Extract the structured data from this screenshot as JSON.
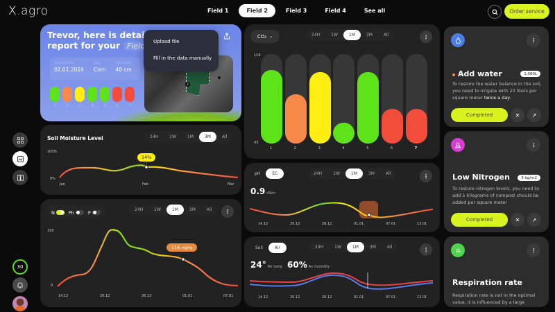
{
  "header": {
    "logo": "X.agro",
    "tabs": [
      {
        "label": "Field 1",
        "active": false
      },
      {
        "label": "Field 2",
        "active": true
      },
      {
        "label": "Field 3",
        "active": false
      },
      {
        "label": "Field 4",
        "active": false
      },
      {
        "label": "See all",
        "active": false
      }
    ],
    "search_icon": "search-icon",
    "order_button": "Order service"
  },
  "sidebar": {
    "nav_icons": [
      "grid-icon",
      "image-icon",
      "book-icon"
    ],
    "active_index": 1,
    "progress_value": "30",
    "bell_icon": "bell-icon",
    "avatar": "user-avatar"
  },
  "hero": {
    "title_line1": "Trevor, here is detailed",
    "title_line2": "report for your",
    "field_name": "Field 2",
    "stats": [
      {
        "label": "Last tracking",
        "value": "02.01.2024"
      },
      {
        "label": "Crop",
        "value": "Corn"
      },
      {
        "label": "Soil depth",
        "value": "40 cm"
      }
    ],
    "pills": [
      {
        "label": "1",
        "color": "#5ee21a"
      },
      {
        "label": "2",
        "color": "#f7894a"
      },
      {
        "label": "3",
        "color": "#ffee12"
      },
      {
        "label": "4",
        "color": "#5ee21a"
      },
      {
        "label": "5",
        "color": "#5ee21a"
      },
      {
        "label": "6",
        "color": "#f24d3a"
      },
      {
        "label": "7",
        "color": "#f24d3a"
      }
    ],
    "dropdown": {
      "items": [
        "Upload file",
        "Fill in the data manually"
      ]
    },
    "map_markers": [
      "1",
      "2",
      "3"
    ]
  },
  "soil_moisture": {
    "title": "Soil Moisture Level",
    "timeframes": [
      "24H",
      "1W",
      "1M",
      "3M",
      "All"
    ],
    "active_timeframe": "3M",
    "y_max": "100%",
    "y_min": "0%",
    "x_labels": [
      "Jan",
      "Feb",
      "Mar"
    ],
    "tooltip": "14%"
  },
  "nutrients": {
    "toggles": [
      {
        "label": "N",
        "on": true
      },
      {
        "label": "Ph",
        "on": false
      },
      {
        "label": "P",
        "on": false
      }
    ],
    "timeframes": [
      "24H",
      "1W",
      "1M",
      "3M",
      "All"
    ],
    "active_timeframe": "1M",
    "y_max": "150",
    "y_min": "0",
    "x_labels": [
      "14.12",
      "20.12",
      "26.12",
      "01.01",
      "07.01"
    ],
    "tooltip_value": "116",
    "tooltip_unit": "mg/kg"
  },
  "co2": {
    "selector": "CO₂",
    "timeframes": [
      "24H",
      "1W",
      "1M",
      "3M",
      "All"
    ],
    "active_timeframe": "1M",
    "y_max": "116",
    "y_min": "43",
    "bars": [
      {
        "label": "1",
        "pct": 82,
        "color": "#5ee21a"
      },
      {
        "label": "2",
        "pct": 55,
        "color": "#f7894a"
      },
      {
        "label": "3",
        "pct": 80,
        "color": "#ffee12"
      },
      {
        "label": "4",
        "pct": 23,
        "color": "#5ee21a"
      },
      {
        "label": "5",
        "pct": 80,
        "color": "#5ee21a"
      },
      {
        "label": "6",
        "pct": 39,
        "color": "#f24d3a"
      },
      {
        "label": "7",
        "pct": 39,
        "color": "#f24d3a"
      }
    ]
  },
  "ec": {
    "toggle": [
      "pH",
      "EC"
    ],
    "active_toggle": "EC",
    "timeframes": [
      "24H",
      "1W",
      "1M",
      "3M",
      "All"
    ],
    "active_timeframe": "1M",
    "value": "0.9",
    "unit": "dS/m",
    "x_labels": [
      "14.12",
      "20.12",
      "26.12",
      "01.01",
      "07.01",
      "13.01"
    ]
  },
  "air": {
    "toggle": [
      "Soil",
      "Air"
    ],
    "active_toggle": "Air",
    "timeframes": [
      "24H",
      "1W",
      "1M",
      "3M",
      "All"
    ],
    "active_timeframe": "1M",
    "temp_value": "24°",
    "temp_label": "Air temp",
    "humidity_value": "60%",
    "humidity_label": "Air humidity",
    "x_labels": [
      "14.12",
      "20.12",
      "26.12",
      "01.01",
      "07.01",
      "13.01"
    ]
  },
  "tasks": [
    {
      "icon": "water-drop-icon",
      "icon_color": "#4c7ee8",
      "title": "Add water",
      "badge": "1,000L",
      "desc_pre": "To restore the water balance in the soil, you need to irrigate with 20 liters per square meter ",
      "desc_bold": "twice a day.",
      "button": "Completed"
    },
    {
      "icon": "flask-icon",
      "icon_color": "#d63fd0",
      "title": "Low Nitrogen",
      "badge": "5 kg/m2",
      "desc_pre": "To restore nitrogen levels, you need to add 5 kilograms of compost should be added per square meter",
      "desc_bold": "",
      "button": "Completed"
    },
    {
      "icon": "co2-cloud-icon",
      "icon_color": "#4fd44c",
      "title": "Respiration rate",
      "badge": "",
      "desc_pre": "Respiration rate is not in the optimal value, it is influenced by a large",
      "desc_bold": "",
      "button": ""
    }
  ]
}
